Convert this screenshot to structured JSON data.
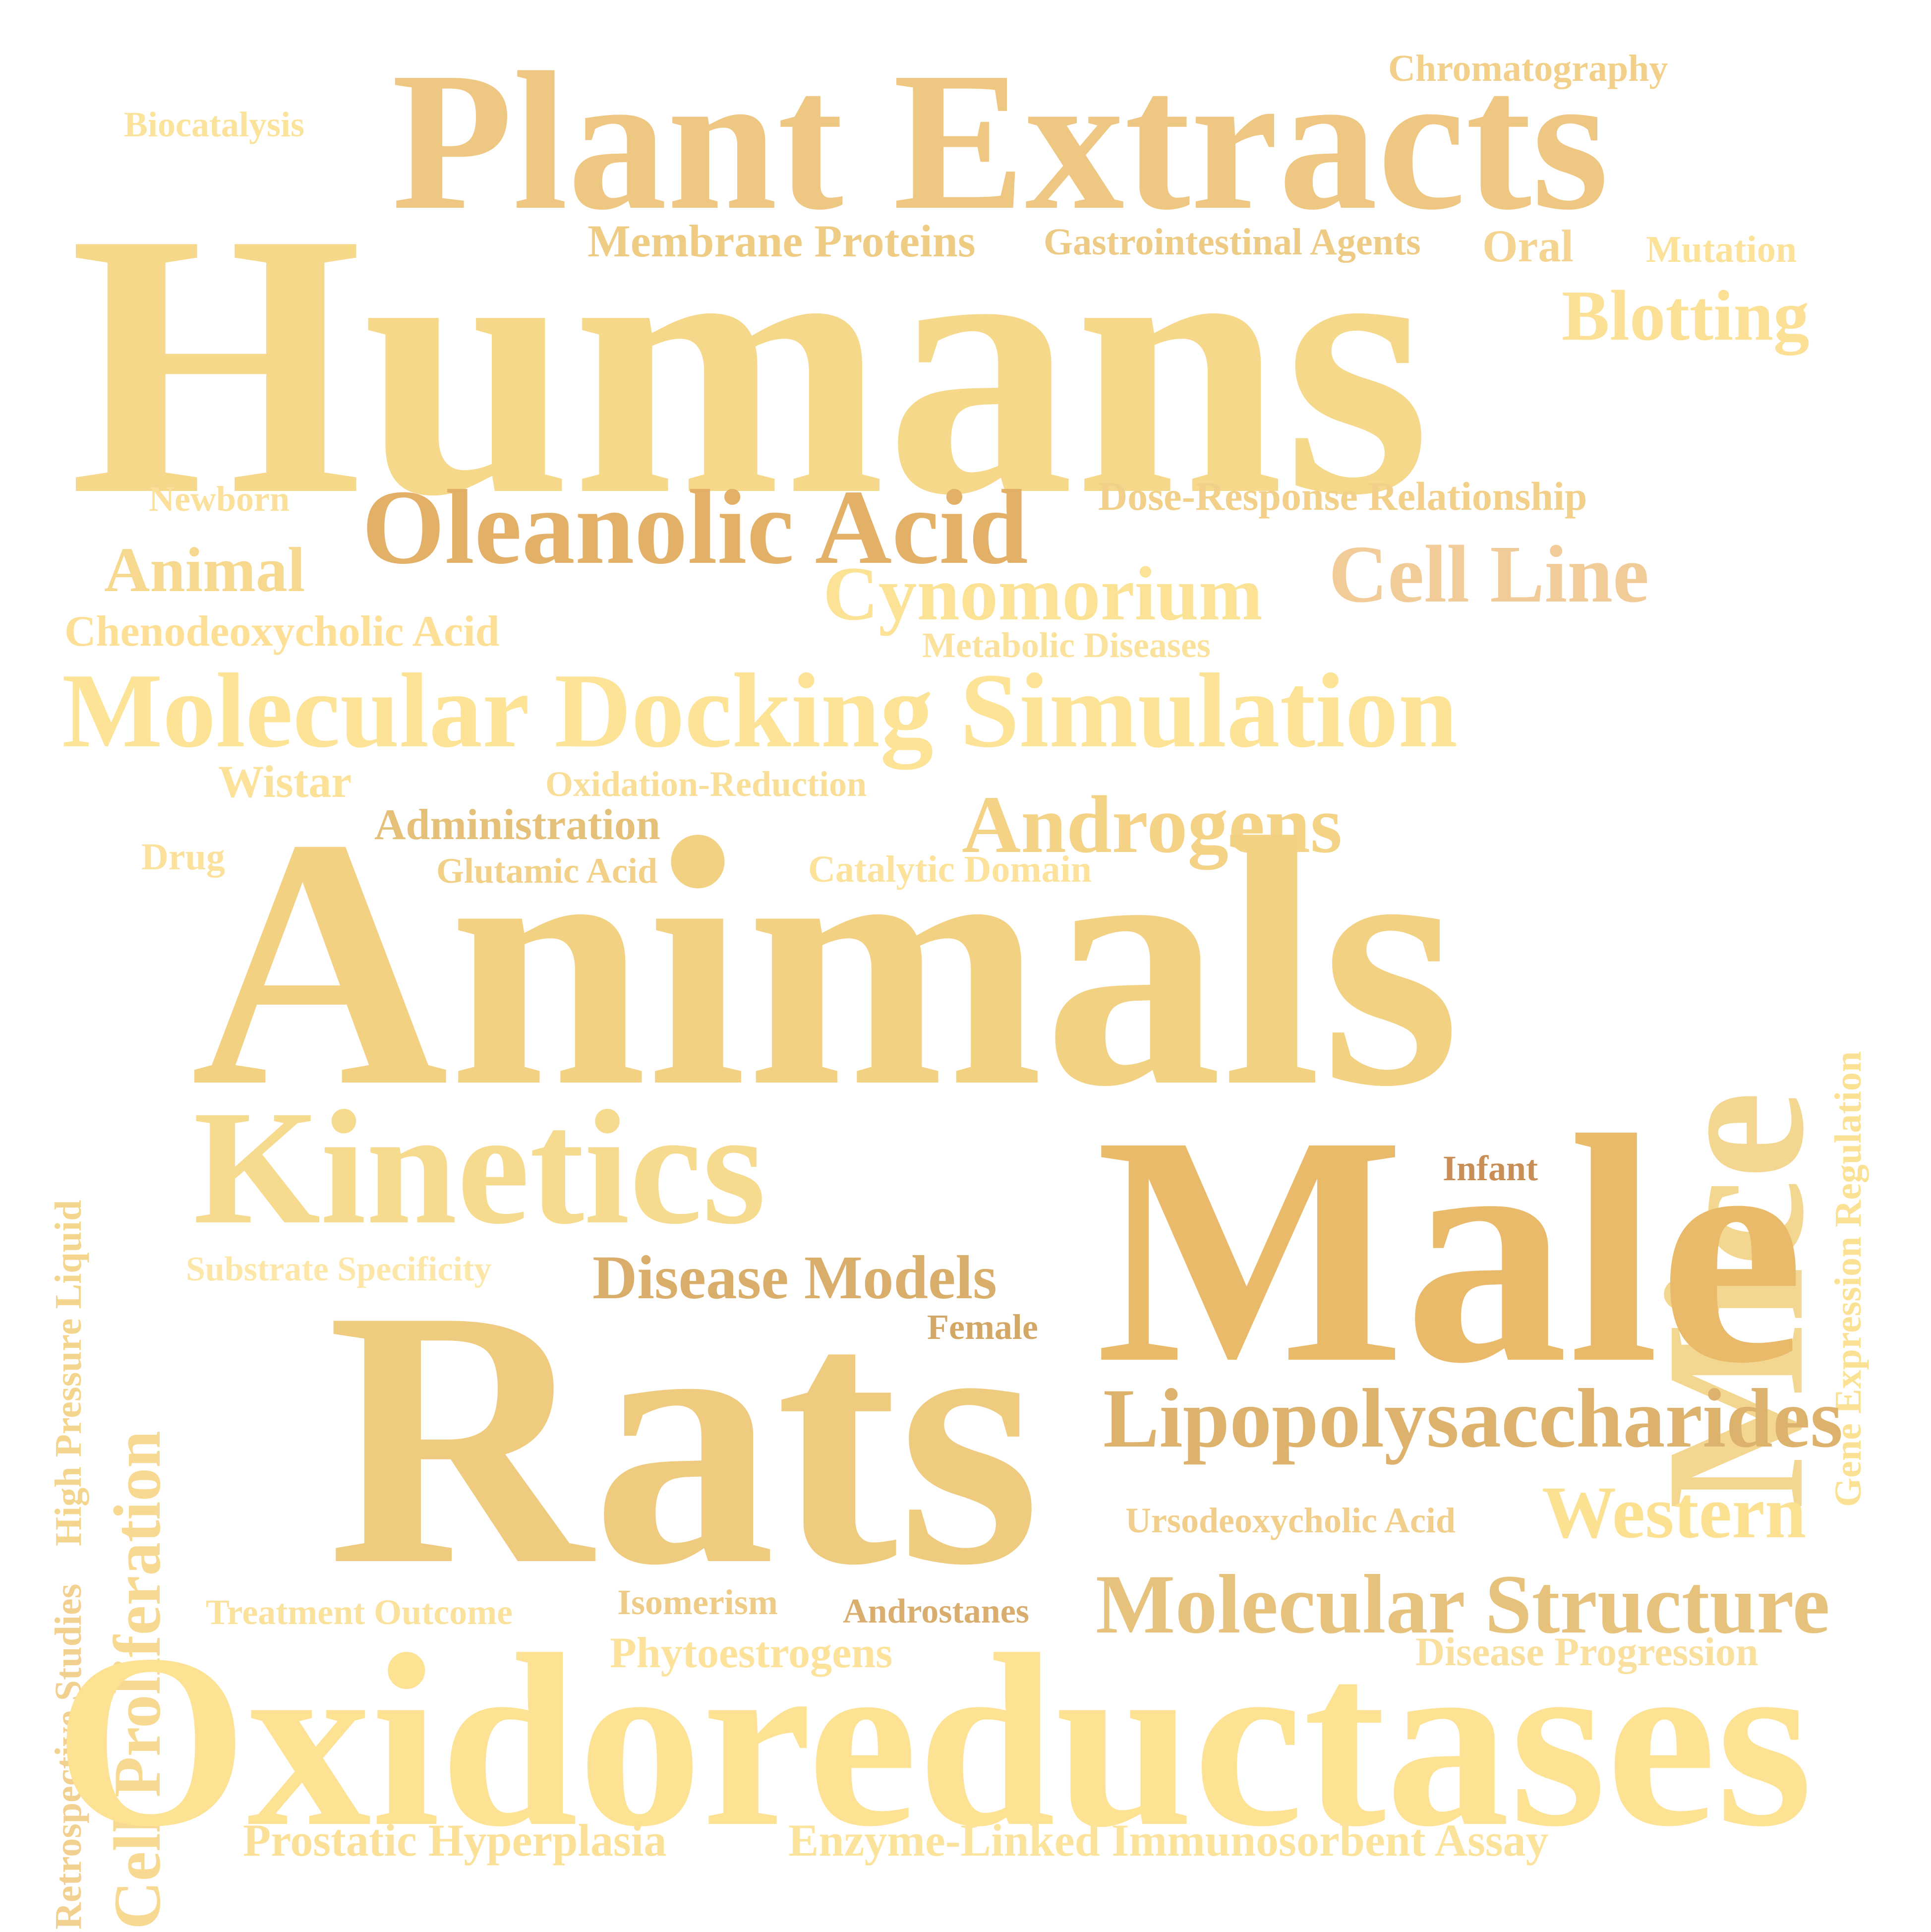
{
  "words": {
    "humans": {
      "text": "Humans",
      "color": "#F6D88A"
    },
    "animals": {
      "text": "Animals",
      "color": "#F3D183"
    },
    "rats": {
      "text": "Rats",
      "color": "#EECB7E"
    },
    "male": {
      "text": "Male",
      "color": "#E8BA6A"
    },
    "oxidoreductases": {
      "text": "Oxidoreductases",
      "color": "#FDE293"
    },
    "plant_extracts": {
      "text": "Plant Extracts",
      "color": "#EEC783"
    },
    "mice": {
      "text": "Mice",
      "color": "#F3D790"
    },
    "kinetics": {
      "text": "Kinetics",
      "color": "#F6DA8E"
    },
    "molecular_docking": {
      "text": "Molecular Docking Simulation",
      "color": "#FDE396"
    },
    "oleanolic_acid": {
      "text": "Oleanolic Acid",
      "color": "#E3B067"
    },
    "lipopolysaccharides": {
      "text": "Lipopolysaccharides",
      "color": "#DDB26D"
    },
    "molecular_structure": {
      "text": "Molecular Structure",
      "color": "#E6C27D"
    },
    "androgens": {
      "text": "Androgens",
      "color": "#F4D387"
    },
    "cell_line": {
      "text": "Cell Line",
      "color": "#F2CC98"
    },
    "cynomorium": {
      "text": "Cynomorium",
      "color": "#FBE295"
    },
    "western": {
      "text": "Western",
      "color": "#FDE192"
    },
    "blotting": {
      "text": "Blotting",
      "color": "#FCE096"
    },
    "cell_proliferation": {
      "text": "Cell Proliferation",
      "color": "#F7D991"
    },
    "animal": {
      "text": "Animal",
      "color": "#F7D88F"
    },
    "disease_models": {
      "text": "Disease Models",
      "color": "#D9AD6A"
    },
    "chenodeoxycholic_acid": {
      "text": "Chenodeoxycholic Acid",
      "color": "#FDE096"
    },
    "membrane_proteins": {
      "text": "Membrane Proteins",
      "color": "#EFCC83"
    },
    "gastrointestinal_agents": {
      "text": "Gastrointestinal Agents",
      "color": "#EECB84"
    },
    "oral": {
      "text": "Oral",
      "color": "#F4D490"
    },
    "mutation": {
      "text": "Mutation",
      "color": "#FBE298"
    },
    "chromatography": {
      "text": "Chromatography",
      "color": "#F2D08A"
    },
    "biocatalysis": {
      "text": "Biocatalysis",
      "color": "#FBE39B"
    },
    "newborn": {
      "text": "Newborn",
      "color": "#FAE09A"
    },
    "dose_response": {
      "text": "Dose-Response Relationship",
      "color": "#F2D08A"
    },
    "metabolic_diseases": {
      "text": "Metabolic Diseases",
      "color": "#FBE29C"
    },
    "gene_expression_regulation": {
      "text": "Gene Expression Regulation",
      "color": "#FBE194"
    },
    "wistar": {
      "text": "Wistar",
      "color": "#FCE298"
    },
    "oxidation_reduction": {
      "text": "Oxidation-Reduction",
      "color": "#F9DE97"
    },
    "administration": {
      "text": "Administration",
      "color": "#E5C079"
    },
    "drug": {
      "text": "Drug",
      "color": "#FBE19C"
    },
    "glutamic_acid": {
      "text": "Glutamic Acid",
      "color": "#F2D088"
    },
    "catalytic_domain": {
      "text": "Catalytic Domain",
      "color": "#FCE29B"
    },
    "high_pressure_liquid": {
      "text": "High Pressure Liquid",
      "color": "#F4D58E"
    },
    "retrospective_studies": {
      "text": "Retrospective Studies",
      "color": "#F2D090"
    },
    "substrate_specificity": {
      "text": "Substrate Specificity",
      "color": "#FCE7A8"
    },
    "infant": {
      "text": "Infant",
      "color": "#C88E55"
    },
    "female": {
      "text": "Female",
      "color": "#D3A765"
    },
    "ursodeoxycholic_acid": {
      "text": "Ursodeoxycholic Acid",
      "color": "#F1CE8C"
    },
    "isomerism": {
      "text": "Isomerism",
      "color": "#EECB86"
    },
    "treatment_outcome": {
      "text": "Treatment Outcome",
      "color": "#FBE29C"
    },
    "androstanes": {
      "text": "Androstanes",
      "color": "#D8AD6D"
    },
    "phytoestrogens": {
      "text": "Phytoestrogens",
      "color": "#FCE29A"
    },
    "disease_progression": {
      "text": "Disease Progression",
      "color": "#FAE09E"
    },
    "prostatic_hyperplasia": {
      "text": "Prostatic Hyperplasia",
      "color": "#FBE197"
    },
    "elisa": {
      "text": "Enzyme-Linked Immunosorbent Assay",
      "color": "#FCE39C"
    }
  }
}
